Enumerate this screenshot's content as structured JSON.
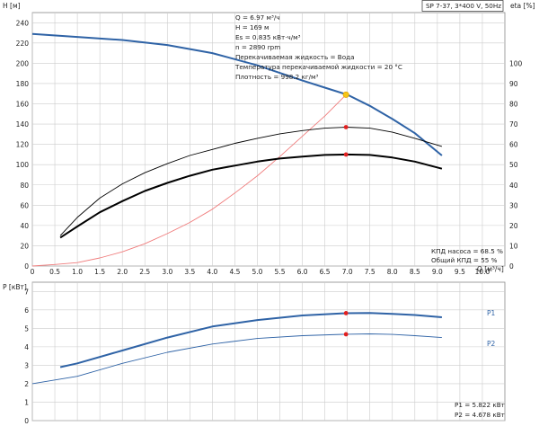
{
  "header": {
    "model": "SP 7-37, 3*400 V, 50Hz"
  },
  "operating_point": {
    "lines": [
      "Q = 6.97 м³/ч",
      "H = 169 м",
      "Es = 0.835 кВт·ч/м³",
      "n = 2890 rpm",
      "Перекачиваемая жидкость = Вода",
      "Температура перекачиваемой жидкости = 20 °C",
      "Плотность = 998.2 кг/м³"
    ],
    "efficiency_lines": [
      "КПД насоса = 68.5 %",
      "Общий КПД = 55 %"
    ],
    "power_lines": [
      "P1 = 5.822 кВт",
      "P2 = 4.678 кВт"
    ]
  },
  "colors": {
    "head_curve": "#2f63a6",
    "system_curve": "#f07c7c",
    "efficiency_curves": "#000000",
    "duty_marker": "#e02020",
    "op_marker": "#f5c518",
    "grid": "#cccccc"
  },
  "chart_data": [
    {
      "type": "line",
      "title": "",
      "xlabel": "Q [м³/ч]",
      "ylabel": "H [м]",
      "ylabel2": "eta [%]",
      "xlim": [
        0,
        10.5
      ],
      "ylim": [
        0,
        250
      ],
      "y2lim": [
        0,
        125
      ],
      "xticks": [
        "0",
        "0.5",
        "1.0",
        "1.5",
        "2.0",
        "2.5",
        "3.0",
        "3.5",
        "4.0",
        "4.5",
        "5.0",
        "5.5",
        "6.0",
        "6.5",
        "7.0",
        "7.5",
        "8.0",
        "8.5",
        "9.0",
        "9.5",
        "10.0"
      ],
      "yticks": [
        0,
        20,
        40,
        60,
        80,
        100,
        120,
        140,
        160,
        180,
        200,
        220,
        240
      ],
      "y2ticks": [
        0,
        10,
        20,
        30,
        40,
        50,
        60,
        70,
        80,
        90,
        100
      ],
      "grid": true,
      "series": [
        {
          "name": "",
          "axis": "left",
          "color": "#2f63a6",
          "width": 2,
          "x": [
            0,
            1,
            2,
            3,
            4,
            5,
            6,
            6.5,
            7,
            7.5,
            8,
            8.5,
            9.1
          ],
          "y": [
            229,
            226,
            223,
            218,
            210,
            198,
            183,
            176,
            169,
            158,
            145,
            131,
            109
          ]
        },
        {
          "name": "",
          "axis": "left",
          "color": "#f07c7c",
          "width": 0.9,
          "x": [
            0,
            0.5,
            1,
            1.5,
            2,
            2.5,
            3,
            3.5,
            4,
            4.5,
            5,
            5.5,
            6,
            6.5,
            6.97
          ],
          "y": [
            0,
            1.5,
            3.4,
            8,
            14,
            22,
            32,
            43,
            56,
            72,
            89,
            108,
            128,
            148,
            169
          ]
        },
        {
          "name": "",
          "axis": "right",
          "color": "#000000",
          "width": 0.9,
          "x": [
            0.62,
            1,
            1.5,
            2,
            2.5,
            3,
            3.5,
            4,
            4.5,
            5,
            5.5,
            6,
            6.5,
            6.97,
            7.5,
            8,
            8.5,
            9.1
          ],
          "y": [
            15,
            24,
            33.5,
            40.5,
            46,
            50.5,
            54.5,
            57.5,
            60.5,
            63,
            65.2,
            66.8,
            68,
            68.5,
            68,
            66,
            63,
            59
          ]
        },
        {
          "name": "",
          "axis": "right",
          "color": "#000000",
          "width": 2,
          "x": [
            0.62,
            1,
            1.5,
            2,
            2.5,
            3,
            3.5,
            4,
            4.5,
            5,
            5.5,
            6,
            6.5,
            6.97,
            7.5,
            8,
            8.5,
            9.1
          ],
          "y": [
            14,
            19.5,
            26.5,
            32,
            37,
            41,
            44.5,
            47.5,
            49.5,
            51.5,
            53,
            54,
            54.8,
            55,
            54.8,
            53.5,
            51.5,
            48
          ]
        }
      ],
      "points": [
        {
          "axis": "left",
          "x": 6.97,
          "y": 169,
          "color": "#f5c518"
        },
        {
          "axis": "right",
          "x": 6.97,
          "y": 68.5,
          "color": "#e02020"
        },
        {
          "axis": "right",
          "x": 6.97,
          "y": 55,
          "color": "#e02020"
        }
      ]
    },
    {
      "type": "line",
      "title": "",
      "xlabel": "",
      "ylabel": "P [кВт]",
      "xlim": [
        0,
        10.5
      ],
      "ylim": [
        0,
        7.5
      ],
      "yticks": [
        0,
        1,
        2,
        3,
        4,
        5,
        6,
        7
      ],
      "grid": true,
      "series": [
        {
          "name": "P1",
          "color": "#2f63a6",
          "width": 2,
          "x": [
            0.62,
            1,
            2,
            3,
            4,
            5,
            6,
            6.97,
            7.5,
            8,
            8.5,
            9.1
          ],
          "y": [
            2.9,
            3.1,
            3.8,
            4.5,
            5.1,
            5.45,
            5.7,
            5.822,
            5.83,
            5.78,
            5.72,
            5.6
          ]
        },
        {
          "name": "P2",
          "color": "#2f63a6",
          "width": 0.9,
          "x": [
            0,
            1,
            2,
            3,
            4,
            5,
            6,
            6.97,
            7.5,
            8,
            8.5,
            9.1
          ],
          "y": [
            2.0,
            2.4,
            3.1,
            3.7,
            4.15,
            4.45,
            4.6,
            4.678,
            4.7,
            4.67,
            4.6,
            4.5
          ]
        }
      ],
      "points": [
        {
          "x": 6.97,
          "y": 5.822,
          "color": "#e02020"
        },
        {
          "x": 6.97,
          "y": 4.678,
          "color": "#e02020"
        }
      ]
    }
  ]
}
